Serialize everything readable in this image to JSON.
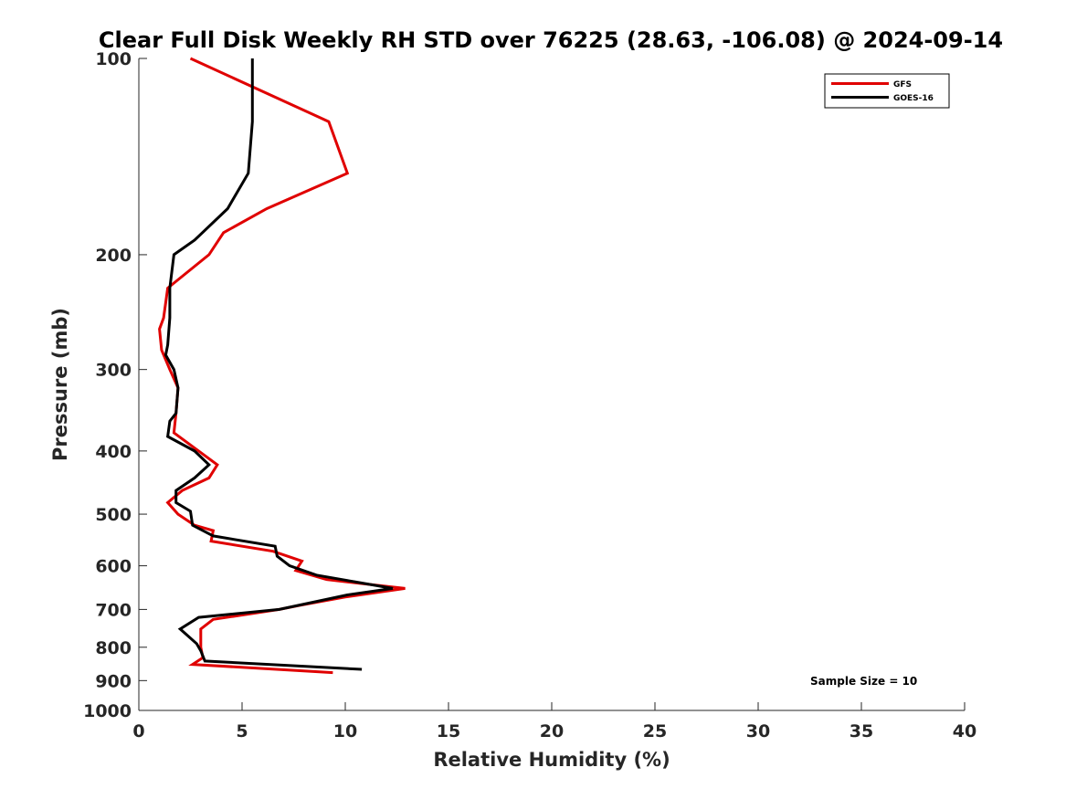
{
  "chart_data": {
    "type": "line",
    "title": "Clear Full Disk Weekly RH STD over 76225 (28.63, -106.08) @ 2024-09-14",
    "xlabel": "Relative Humidity (%)",
    "ylabel": "Pressure (mb)",
    "xlim": [
      0,
      40
    ],
    "ylim": [
      1000,
      100
    ],
    "y_scale": "log",
    "x_ticks": [
      0,
      5,
      10,
      15,
      20,
      25,
      30,
      35,
      40
    ],
    "x_tick_labels": [
      "0",
      "5",
      "10",
      "15",
      "20",
      "25",
      "30",
      "35",
      "40"
    ],
    "y_ticks": [
      100,
      200,
      300,
      400,
      500,
      600,
      700,
      800,
      900,
      1000
    ],
    "y_tick_labels": [
      "100",
      "200",
      "300",
      "400",
      "500",
      "600",
      "700",
      "800",
      "900",
      "1000"
    ],
    "grid": false,
    "legend_position": "top-right",
    "annotation": "Sample Size = 10",
    "series": [
      {
        "name": "GFS",
        "color": "#e00000",
        "points": [
          [
            2.5,
            100
          ],
          [
            9.2,
            125
          ],
          [
            10.1,
            150
          ],
          [
            6.2,
            170
          ],
          [
            4.1,
            185
          ],
          [
            3.4,
            200
          ],
          [
            1.4,
            225
          ],
          [
            1.2,
            250
          ],
          [
            1.0,
            260
          ],
          [
            1.1,
            280
          ],
          [
            1.5,
            300
          ],
          [
            1.9,
            320
          ],
          [
            1.8,
            350
          ],
          [
            1.7,
            375
          ],
          [
            2.9,
            400
          ],
          [
            3.8,
            420
          ],
          [
            3.4,
            440
          ],
          [
            2.1,
            460
          ],
          [
            1.4,
            480
          ],
          [
            1.9,
            500
          ],
          [
            2.7,
            520
          ],
          [
            3.6,
            530
          ],
          [
            3.5,
            550
          ],
          [
            6.5,
            570
          ],
          [
            7.9,
            590
          ],
          [
            7.6,
            610
          ],
          [
            9.1,
            630
          ],
          [
            12.9,
            650
          ],
          [
            10.0,
            670
          ],
          [
            7.8,
            690
          ],
          [
            6.8,
            700
          ],
          [
            3.6,
            725
          ],
          [
            3.0,
            750
          ],
          [
            3.0,
            800
          ],
          [
            3.1,
            830
          ],
          [
            2.6,
            850
          ],
          [
            9.4,
            875
          ]
        ]
      },
      {
        "name": "GOES-16",
        "color": "#000000",
        "points": [
          [
            5.5,
            100
          ],
          [
            5.5,
            125
          ],
          [
            5.3,
            150
          ],
          [
            4.3,
            170
          ],
          [
            2.7,
            190
          ],
          [
            1.7,
            200
          ],
          [
            1.5,
            225
          ],
          [
            1.5,
            250
          ],
          [
            1.4,
            275
          ],
          [
            1.3,
            285
          ],
          [
            1.7,
            300
          ],
          [
            1.9,
            320
          ],
          [
            1.8,
            350
          ],
          [
            1.5,
            360
          ],
          [
            1.4,
            380
          ],
          [
            2.7,
            400
          ],
          [
            3.4,
            420
          ],
          [
            2.7,
            440
          ],
          [
            1.8,
            460
          ],
          [
            1.8,
            480
          ],
          [
            2.5,
            495
          ],
          [
            2.6,
            520
          ],
          [
            3.6,
            540
          ],
          [
            6.6,
            560
          ],
          [
            6.7,
            580
          ],
          [
            7.3,
            600
          ],
          [
            8.6,
            620
          ],
          [
            12.3,
            650
          ],
          [
            10.1,
            665
          ],
          [
            6.8,
            700
          ],
          [
            2.9,
            720
          ],
          [
            2.0,
            750
          ],
          [
            2.8,
            790
          ],
          [
            3.0,
            810
          ],
          [
            3.2,
            840
          ],
          [
            10.8,
            865
          ]
        ]
      }
    ]
  }
}
